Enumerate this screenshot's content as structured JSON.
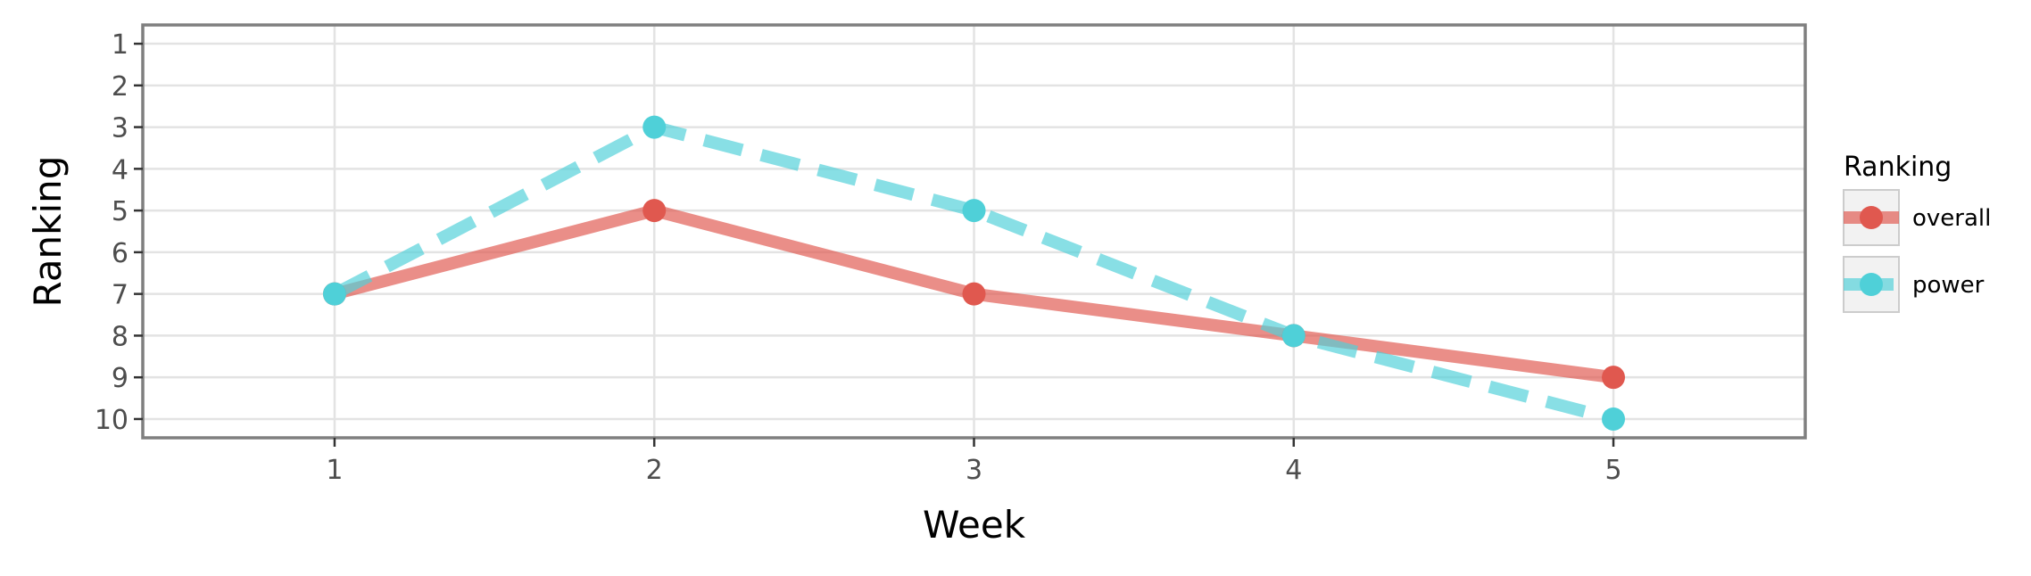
{
  "chart_data": {
    "type": "line",
    "xlabel": "Week",
    "ylabel": "Ranking",
    "x": [
      1,
      2,
      3,
      4,
      5
    ],
    "xlim": [
      0.4,
      5.6
    ],
    "ylim": [
      10.45,
      0.55
    ],
    "y_reversed": true,
    "x_ticks": [
      "1",
      "2",
      "3",
      "4",
      "5"
    ],
    "y_ticks": [
      "1",
      "2",
      "3",
      "4",
      "5",
      "6",
      "7",
      "8",
      "9",
      "10"
    ],
    "grid": true,
    "legend": {
      "title": "Ranking",
      "position": "right"
    },
    "series": [
      {
        "name": "overall",
        "color": "#e0584f",
        "line_style": "solid",
        "values": [
          7,
          5,
          7,
          8,
          9
        ]
      },
      {
        "name": "power",
        "color": "#4fd0d8",
        "line_style": "dashed",
        "values": [
          7,
          3,
          5,
          8,
          10
        ]
      }
    ]
  }
}
